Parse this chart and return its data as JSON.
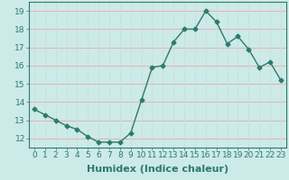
{
  "x": [
    0,
    1,
    2,
    3,
    4,
    5,
    6,
    7,
    8,
    9,
    10,
    11,
    12,
    13,
    14,
    15,
    16,
    17,
    18,
    19,
    20,
    21,
    22,
    23
  ],
  "y": [
    13.6,
    13.3,
    13.0,
    12.7,
    12.5,
    12.1,
    11.8,
    11.8,
    11.8,
    12.3,
    14.1,
    15.9,
    16.0,
    17.3,
    18.0,
    18.0,
    19.0,
    18.4,
    17.2,
    17.6,
    16.9,
    15.9,
    16.2,
    15.2
  ],
  "line_color": "#2d7a6e",
  "marker": "D",
  "marker_size": 2.5,
  "linewidth": 1.0,
  "xlabel": "Humidex (Indice chaleur)",
  "xlabel_fontsize": 8,
  "ylim": [
    11.5,
    19.5
  ],
  "xlim": [
    -0.5,
    23.5
  ],
  "yticks": [
    12,
    13,
    14,
    15,
    16,
    17,
    18,
    19
  ],
  "xticks": [
    0,
    1,
    2,
    3,
    4,
    5,
    6,
    7,
    8,
    9,
    10,
    11,
    12,
    13,
    14,
    15,
    16,
    17,
    18,
    19,
    20,
    21,
    22,
    23
  ],
  "xtick_labels": [
    "0",
    "1",
    "2",
    "3",
    "4",
    "5",
    "6",
    "7",
    "8",
    "9",
    "10",
    "11",
    "12",
    "13",
    "14",
    "15",
    "16",
    "17",
    "18",
    "19",
    "20",
    "21",
    "22",
    "23"
  ],
  "bg_color": "#cceae8",
  "grid_color_h": "#e8b0b0",
  "grid_color_v": "#c8e0de",
  "tick_fontsize": 6.5,
  "spine_color": "#2d7a6e"
}
